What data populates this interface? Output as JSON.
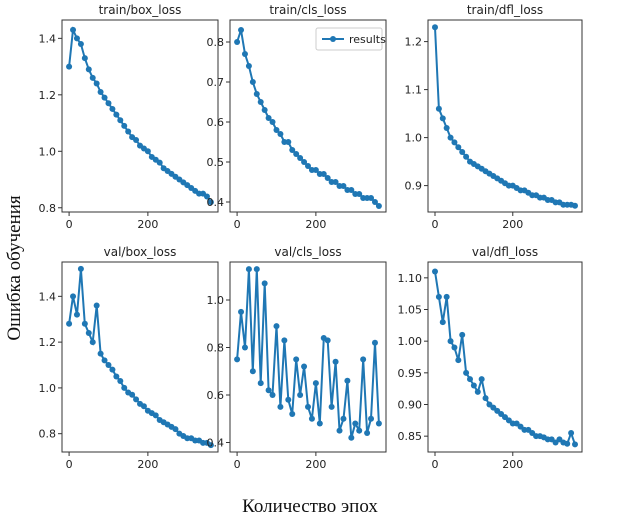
{
  "xlabel": "Количество эпох",
  "ylabel": "Ошибка обучения",
  "legend": {
    "label": "results",
    "placement": "top-right of train/cls_loss"
  },
  "colors": {
    "series": "#1f77b4"
  },
  "chart_data": [
    {
      "type": "line",
      "title": "train/box_loss",
      "xlim": [
        -18,
        378
      ],
      "ylim": [
        0.785,
        1.465
      ],
      "xticks": [
        0,
        200
      ],
      "yticks": [
        0.8,
        1.0,
        1.2,
        1.4
      ],
      "ytick_labels": [
        "0.8",
        "1.0",
        "1.2",
        "1.4"
      ],
      "series": [
        {
          "name": "results",
          "x": [
            0,
            10,
            20,
            30,
            40,
            50,
            60,
            70,
            80,
            90,
            100,
            110,
            120,
            130,
            140,
            150,
            160,
            170,
            180,
            190,
            200,
            210,
            220,
            230,
            240,
            250,
            260,
            270,
            280,
            290,
            300,
            310,
            320,
            330,
            340,
            350,
            360
          ],
          "values": [
            1.3,
            1.43,
            1.4,
            1.38,
            1.33,
            1.29,
            1.26,
            1.24,
            1.21,
            1.19,
            1.17,
            1.15,
            1.13,
            1.11,
            1.09,
            1.07,
            1.05,
            1.04,
            1.02,
            1.01,
            1.0,
            0.98,
            0.97,
            0.96,
            0.94,
            0.93,
            0.92,
            0.91,
            0.9,
            0.89,
            0.88,
            0.87,
            0.86,
            0.85,
            0.85,
            0.84,
            0.82
          ]
        }
      ]
    },
    {
      "type": "line",
      "title": "train/cls_loss",
      "xlim": [
        -18,
        378
      ],
      "ylim": [
        0.375,
        0.855
      ],
      "xticks": [
        0,
        200
      ],
      "yticks": [
        0.4,
        0.5,
        0.6,
        0.7,
        0.8
      ],
      "ytick_labels": [
        "0.4",
        "0.5",
        "0.6",
        "0.7",
        "0.8"
      ],
      "series": [
        {
          "name": "results",
          "x": [
            0,
            10,
            20,
            30,
            40,
            50,
            60,
            70,
            80,
            90,
            100,
            110,
            120,
            130,
            140,
            150,
            160,
            170,
            180,
            190,
            200,
            210,
            220,
            230,
            240,
            250,
            260,
            270,
            280,
            290,
            300,
            310,
            320,
            330,
            340,
            350,
            360
          ],
          "values": [
            0.8,
            0.83,
            0.77,
            0.74,
            0.7,
            0.67,
            0.65,
            0.63,
            0.61,
            0.6,
            0.58,
            0.57,
            0.55,
            0.55,
            0.53,
            0.52,
            0.51,
            0.5,
            0.49,
            0.48,
            0.48,
            0.47,
            0.47,
            0.46,
            0.45,
            0.45,
            0.44,
            0.44,
            0.43,
            0.43,
            0.42,
            0.42,
            0.41,
            0.41,
            0.41,
            0.4,
            0.39
          ]
        }
      ]
    },
    {
      "type": "line",
      "title": "train/dfl_loss",
      "xlim": [
        -18,
        378
      ],
      "ylim": [
        0.845,
        1.245
      ],
      "xticks": [
        0,
        200
      ],
      "yticks": [
        0.9,
        1.0,
        1.1,
        1.2
      ],
      "ytick_labels": [
        "0.9",
        "1.0",
        "1.1",
        "1.2"
      ],
      "series": [
        {
          "name": "results",
          "x": [
            0,
            10,
            20,
            30,
            40,
            50,
            60,
            70,
            80,
            90,
            100,
            110,
            120,
            130,
            140,
            150,
            160,
            170,
            180,
            190,
            200,
            210,
            220,
            230,
            240,
            250,
            260,
            270,
            280,
            290,
            300,
            310,
            320,
            330,
            340,
            350,
            360
          ],
          "values": [
            1.23,
            1.06,
            1.04,
            1.02,
            1.0,
            0.99,
            0.98,
            0.97,
            0.96,
            0.95,
            0.945,
            0.94,
            0.935,
            0.93,
            0.925,
            0.92,
            0.915,
            0.91,
            0.905,
            0.9,
            0.9,
            0.895,
            0.89,
            0.89,
            0.885,
            0.88,
            0.88,
            0.875,
            0.875,
            0.87,
            0.87,
            0.865,
            0.865,
            0.86,
            0.86,
            0.86,
            0.858
          ]
        }
      ]
    },
    {
      "type": "line",
      "title": "val/box_loss",
      "xlim": [
        -18,
        378
      ],
      "ylim": [
        0.72,
        1.55
      ],
      "xticks": [
        0,
        200
      ],
      "yticks": [
        0.8,
        1.0,
        1.2,
        1.4
      ],
      "ytick_labels": [
        "0.8",
        "1.0",
        "1.2",
        "1.4"
      ],
      "series": [
        {
          "name": "results",
          "x": [
            0,
            10,
            20,
            30,
            40,
            50,
            60,
            70,
            80,
            90,
            100,
            110,
            120,
            130,
            140,
            150,
            160,
            170,
            180,
            190,
            200,
            210,
            220,
            230,
            240,
            250,
            260,
            270,
            280,
            290,
            300,
            310,
            320,
            330,
            340,
            350,
            360
          ],
          "values": [
            1.28,
            1.4,
            1.32,
            1.52,
            1.28,
            1.24,
            1.2,
            1.36,
            1.15,
            1.12,
            1.1,
            1.08,
            1.05,
            1.03,
            1.0,
            0.98,
            0.97,
            0.95,
            0.93,
            0.92,
            0.9,
            0.89,
            0.88,
            0.86,
            0.85,
            0.84,
            0.83,
            0.82,
            0.8,
            0.79,
            0.78,
            0.78,
            0.77,
            0.77,
            0.76,
            0.76,
            0.75
          ]
        }
      ]
    },
    {
      "type": "line",
      "title": "val/cls_loss",
      "xlim": [
        -18,
        378
      ],
      "ylim": [
        0.36,
        1.16
      ],
      "xticks": [
        0,
        200
      ],
      "yticks": [
        0.4,
        0.6,
        0.8,
        1.0
      ],
      "ytick_labels": [
        "0.4",
        "0.6",
        "0.8",
        "1.0"
      ],
      "series": [
        {
          "name": "results",
          "x": [
            0,
            10,
            20,
            30,
            40,
            50,
            60,
            70,
            80,
            90,
            100,
            110,
            120,
            130,
            140,
            150,
            160,
            170,
            180,
            190,
            200,
            210,
            220,
            230,
            240,
            250,
            260,
            270,
            280,
            290,
            300,
            310,
            320,
            330,
            340,
            350,
            360
          ],
          "values": [
            0.75,
            0.95,
            0.8,
            1.13,
            0.7,
            1.13,
            0.65,
            1.07,
            0.62,
            0.6,
            0.89,
            0.55,
            0.83,
            0.58,
            0.52,
            0.75,
            0.6,
            0.72,
            0.55,
            0.5,
            0.65,
            0.48,
            0.84,
            0.83,
            0.55,
            0.74,
            0.45,
            0.5,
            0.66,
            0.42,
            0.48,
            0.45,
            0.75,
            0.44,
            0.5,
            0.82,
            0.48
          ]
        }
      ]
    },
    {
      "type": "line",
      "title": "val/dfl_loss",
      "xlim": [
        -18,
        378
      ],
      "ylim": [
        0.825,
        1.125
      ],
      "xticks": [
        0,
        200
      ],
      "yticks": [
        0.85,
        0.9,
        0.95,
        1.0,
        1.05,
        1.1
      ],
      "ytick_labels": [
        "0.85",
        "0.90",
        "0.95",
        "1.00",
        "1.05",
        "1.10"
      ],
      "series": [
        {
          "name": "results",
          "x": [
            0,
            10,
            20,
            30,
            40,
            50,
            60,
            70,
            80,
            90,
            100,
            110,
            120,
            130,
            140,
            150,
            160,
            170,
            180,
            190,
            200,
            210,
            220,
            230,
            240,
            250,
            260,
            270,
            280,
            290,
            300,
            310,
            320,
            330,
            340,
            350,
            360
          ],
          "values": [
            1.11,
            1.07,
            1.03,
            1.07,
            1.0,
            0.99,
            0.97,
            1.01,
            0.95,
            0.94,
            0.93,
            0.92,
            0.94,
            0.91,
            0.9,
            0.895,
            0.89,
            0.885,
            0.88,
            0.875,
            0.87,
            0.87,
            0.865,
            0.86,
            0.86,
            0.855,
            0.85,
            0.85,
            0.848,
            0.845,
            0.845,
            0.84,
            0.845,
            0.84,
            0.838,
            0.855,
            0.837
          ]
        }
      ]
    }
  ]
}
